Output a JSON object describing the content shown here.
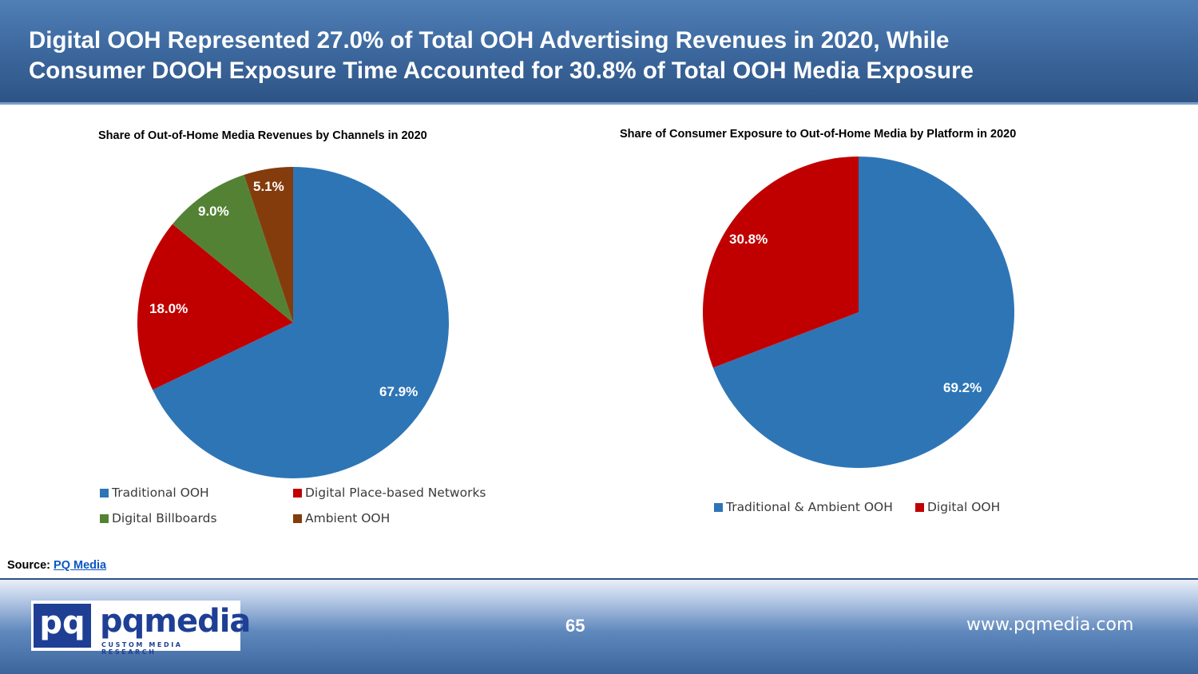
{
  "header": {
    "title_line1": "Digital OOH Represented 27.0% of Total OOH Advertising Revenues in 2020, While",
    "title_line2": "Consumer DOOH Exposure Time Accounted for 30.8% of Total OOH Media Exposure"
  },
  "chart_data": [
    {
      "type": "pie",
      "title": "Share of Out-of-Home Media Revenues by Channels in 2020",
      "categories": [
        "Traditional OOH",
        "Digital Place-based Networks",
        "Digital Billboards",
        "Ambient OOH"
      ],
      "values": [
        67.9,
        18.0,
        9.0,
        5.1
      ],
      "labels": [
        "67.9%",
        "18.0%",
        "9.0%",
        "5.1%"
      ],
      "colors": [
        "#2e75b6",
        "#c00000",
        "#548235",
        "#843c0c"
      ],
      "legend_position": "bottom"
    },
    {
      "type": "pie",
      "title": "Share of Consumer Exposure to Out-of-Home Media by Platform in 2020",
      "categories": [
        "Traditional & Ambient OOH",
        "Digital OOH"
      ],
      "values": [
        69.2,
        30.8
      ],
      "labels": [
        "69.2%",
        "30.8%"
      ],
      "colors": [
        "#2e75b6",
        "#c00000"
      ],
      "legend_position": "bottom"
    }
  ],
  "source": {
    "label": "Source:",
    "link_text": "PQ Media"
  },
  "footer": {
    "logo_mark": "pq",
    "logo_word": "pqmedia",
    "logo_tagline": "CUSTOM MEDIA RESEARCH",
    "page_number": "65",
    "website": "www.pqmedia.com"
  }
}
